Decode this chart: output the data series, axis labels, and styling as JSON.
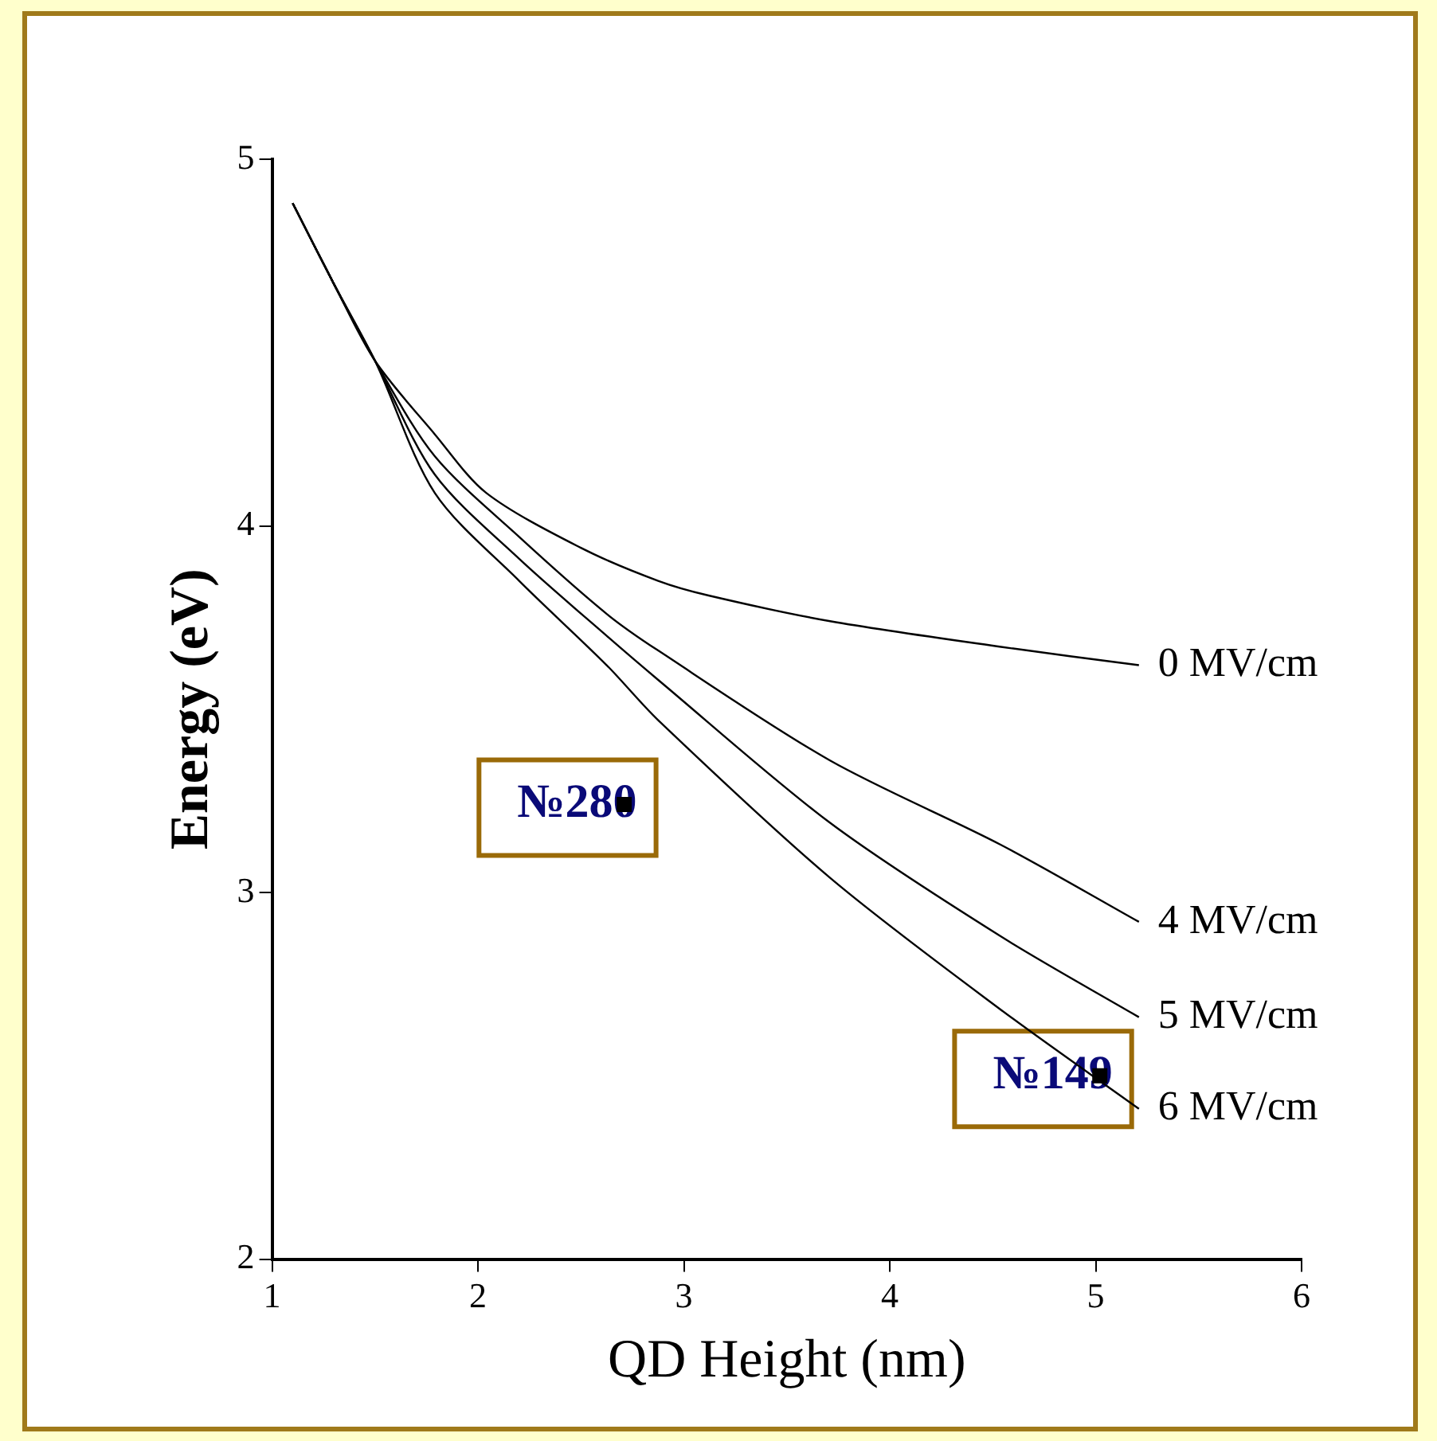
{
  "chart_data": {
    "type": "line",
    "xlabel": "QD Height (nm)",
    "ylabel": "Energy (eV)",
    "xlim": [
      1,
      6
    ],
    "xticks": [
      1,
      2,
      3,
      4,
      5,
      6
    ],
    "ylim": [
      2,
      5
    ],
    "yticks": [
      2,
      3,
      4,
      5
    ],
    "grid": false,
    "legend": false,
    "line_style": "solid",
    "marker": "none",
    "series": [
      {
        "name": "0 MV/cm",
        "color": "#000000",
        "x": [
          1.1,
          1.3,
          1.5,
          1.79,
          2.04,
          2.5,
          2.875,
          3.12,
          3.71,
          4.54,
          5.21
        ],
        "values": [
          4.88,
          4.66,
          4.45,
          4.25,
          4.09,
          3.94,
          3.85,
          3.81,
          3.74,
          3.67,
          3.62
        ]
      },
      {
        "name": "4 MV/cm",
        "color": "#000000",
        "x": [
          1.1,
          1.3,
          1.5,
          1.79,
          2.2,
          2.625,
          2.875,
          3.71,
          4.54,
          5.21
        ],
        "values": [
          4.88,
          4.66,
          4.45,
          4.19,
          3.97,
          3.76,
          3.66,
          3.36,
          3.13,
          2.92
        ]
      },
      {
        "name": "5 MV/cm",
        "color": "#000000",
        "x": [
          1.1,
          1.3,
          1.5,
          1.79,
          2.2,
          2.625,
          2.875,
          3.71,
          4.54,
          5.21
        ],
        "values": [
          4.88,
          4.66,
          4.45,
          4.14,
          3.91,
          3.7,
          3.58,
          3.19,
          2.88,
          2.66
        ]
      },
      {
        "name": "6 MV/cm",
        "color": "#000000",
        "x": [
          1.1,
          1.3,
          1.5,
          1.79,
          2.2,
          2.625,
          2.875,
          3.71,
          4.54,
          5.21
        ],
        "values": [
          4.88,
          4.66,
          4.45,
          4.09,
          3.85,
          3.62,
          3.47,
          3.04,
          2.68,
          2.41
        ]
      },
      {
        "type": "scatter",
        "marker": "square",
        "color": "#000000",
        "x": [
          2.71,
          5.02
        ],
        "values": [
          3.24,
          2.5
        ]
      }
    ],
    "annotations": [
      {
        "text": "№280",
        "x": 2.71,
        "y": 3.24
      },
      {
        "text": "№149",
        "x": 5.02,
        "y": 2.5
      }
    ]
  }
}
